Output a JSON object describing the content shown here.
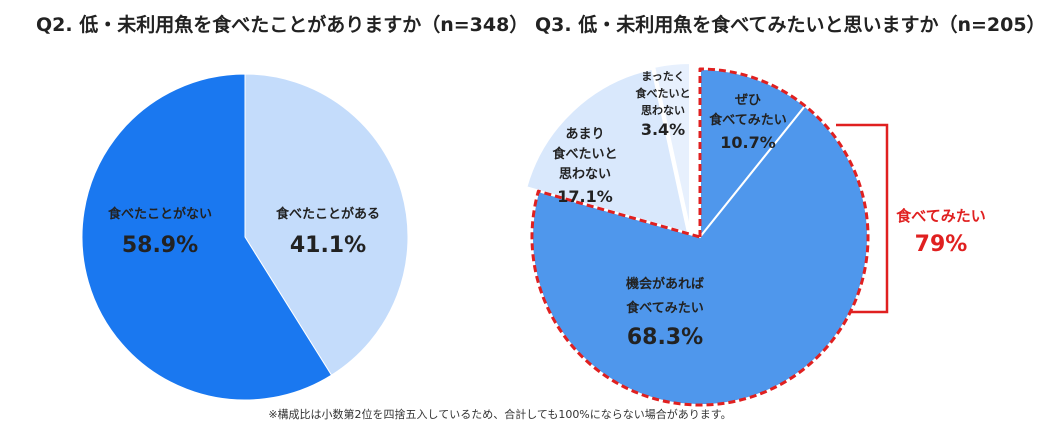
{
  "colors": {
    "dark_blue": "#1a78f0",
    "mid_blue": "#4f97ec",
    "light_blue": "#c4dcfb",
    "lighter_blue": "#d9e8fc",
    "pale_blue": "#e7f0fd",
    "accent_red": "#e02020",
    "text": "#222222"
  },
  "chart_data": [
    {
      "type": "pie",
      "title": "Q2. 低・未利用魚を食べたことがありますか（n=348）",
      "slices": [
        {
          "label": "食べたことがある",
          "value": 41.1,
          "value_label": "41.1%"
        },
        {
          "label": "食べたことがない",
          "value": 58.9,
          "value_label": "58.9%"
        }
      ]
    },
    {
      "type": "pie",
      "title": "Q3. 低・未利用魚を食べてみたいと思いますか（n=205）",
      "slices": [
        {
          "label_lines": [
            "ぜひ",
            "食べてみたい"
          ],
          "value": 10.7,
          "value_label": "10.7%"
        },
        {
          "label_lines": [
            "機会があれば",
            "食べてみたい"
          ],
          "value": 68.3,
          "value_label": "68.3%"
        },
        {
          "label_lines": [
            "あまり",
            "食べたいと",
            "思わない"
          ],
          "value": 17.1,
          "value_label": "17.1%"
        },
        {
          "label_lines": [
            "まったく",
            "食べたいと",
            "思わない"
          ],
          "value": 3.4,
          "value_label": "3.4%"
        }
      ],
      "bracket_annotation": {
        "label": "食べてみたい",
        "value_label": "79%"
      }
    }
  ],
  "footnote": "※構成比は小数第2位を四捨五入しているため、合計しても100%にならない場合があります。"
}
